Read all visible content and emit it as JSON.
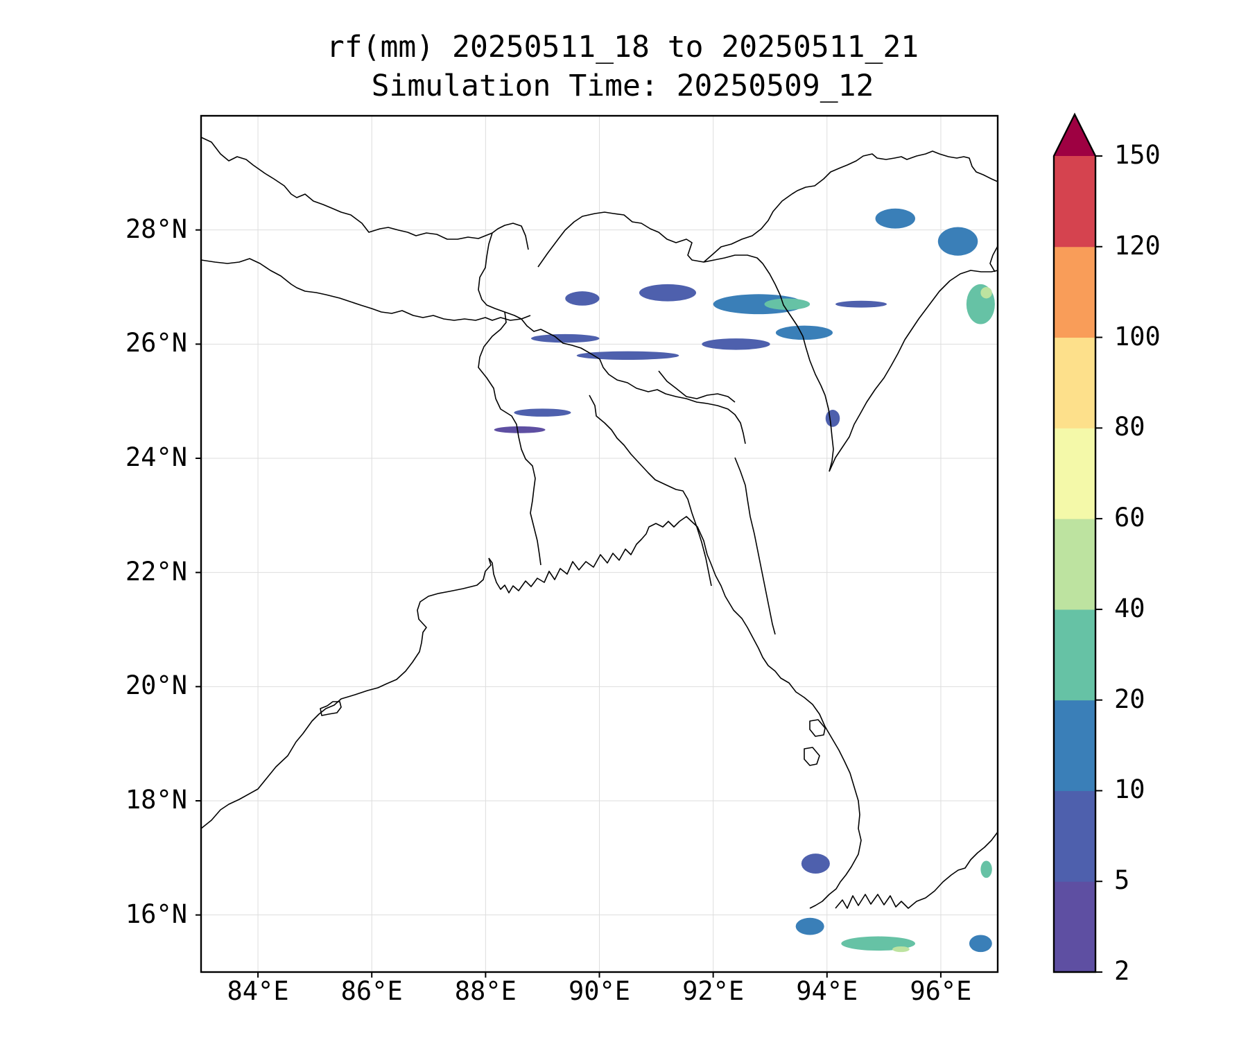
{
  "title": {
    "line1": "rf(mm) 20250511_18 to 20250511_21",
    "line2": "Simulation Time: 20250509_12"
  },
  "map": {
    "lon_range": [
      83.0,
      97.0
    ],
    "lat_range": [
      15.0,
      30.0
    ],
    "lon_ticks": [
      {
        "value": 84,
        "label": "84°E"
      },
      {
        "value": 86,
        "label": "86°E"
      },
      {
        "value": 88,
        "label": "88°E"
      },
      {
        "value": 90,
        "label": "90°E"
      },
      {
        "value": 92,
        "label": "92°E"
      },
      {
        "value": 94,
        "label": "94°E"
      },
      {
        "value": 96,
        "label": "96°E"
      }
    ],
    "lat_ticks": [
      {
        "value": 28,
        "label": "28°N"
      },
      {
        "value": 26,
        "label": "26°N"
      },
      {
        "value": 24,
        "label": "24°N"
      },
      {
        "value": 22,
        "label": "22°N"
      },
      {
        "value": 20,
        "label": "20°N"
      },
      {
        "value": 18,
        "label": "18°N"
      },
      {
        "value": 16,
        "label": "16°N"
      }
    ],
    "gridlines": true
  },
  "colorbar": {
    "levels": [
      "2",
      "5",
      "10",
      "20",
      "40",
      "60",
      "80",
      "100",
      "120",
      "150"
    ],
    "colors": [
      "#5e4fa2",
      "#4e60ad",
      "#3a7fb8",
      "#66c2a5",
      "#bde3a0",
      "#f4f9a9",
      "#fde08b",
      "#f99d59",
      "#d5434f",
      "#9e0142"
    ],
    "extend": "max"
  },
  "rain_cells": [
    {
      "lon": 89.7,
      "lat": 26.8,
      "w": 0.6,
      "h": 0.25,
      "level": 1
    },
    {
      "lon": 91.2,
      "lat": 26.9,
      "w": 1.0,
      "h": 0.3,
      "level": 1
    },
    {
      "lon": 92.8,
      "lat": 26.7,
      "w": 1.6,
      "h": 0.35,
      "level": 2
    },
    {
      "lon": 93.3,
      "lat": 26.7,
      "w": 0.8,
      "h": 0.2,
      "level": 3
    },
    {
      "lon": 94.6,
      "lat": 26.7,
      "w": 0.9,
      "h": 0.12,
      "level": 1
    },
    {
      "lon": 89.4,
      "lat": 26.1,
      "w": 1.2,
      "h": 0.15,
      "level": 1
    },
    {
      "lon": 90.5,
      "lat": 25.8,
      "w": 1.8,
      "h": 0.15,
      "level": 1
    },
    {
      "lon": 89.0,
      "lat": 24.8,
      "w": 1.0,
      "h": 0.14,
      "level": 1
    },
    {
      "lon": 88.6,
      "lat": 24.5,
      "w": 0.9,
      "h": 0.12,
      "level": 0
    },
    {
      "lon": 92.4,
      "lat": 26.0,
      "w": 1.2,
      "h": 0.2,
      "level": 1
    },
    {
      "lon": 93.6,
      "lat": 26.2,
      "w": 1.0,
      "h": 0.25,
      "level": 2
    },
    {
      "lon": 95.2,
      "lat": 28.2,
      "w": 0.7,
      "h": 0.35,
      "level": 2
    },
    {
      "lon": 96.3,
      "lat": 27.8,
      "w": 0.7,
      "h": 0.5,
      "level": 2
    },
    {
      "lon": 96.7,
      "lat": 26.7,
      "w": 0.5,
      "h": 0.7,
      "level": 3
    },
    {
      "lon": 96.8,
      "lat": 26.9,
      "w": 0.2,
      "h": 0.2,
      "level": 4
    },
    {
      "lon": 94.1,
      "lat": 24.7,
      "w": 0.25,
      "h": 0.3,
      "level": 1
    },
    {
      "lon": 93.8,
      "lat": 16.9,
      "w": 0.5,
      "h": 0.35,
      "level": 1
    },
    {
      "lon": 93.7,
      "lat": 15.8,
      "w": 0.5,
      "h": 0.3,
      "level": 2
    },
    {
      "lon": 94.9,
      "lat": 15.5,
      "w": 1.3,
      "h": 0.25,
      "level": 3
    },
    {
      "lon": 95.3,
      "lat": 15.4,
      "w": 0.3,
      "h": 0.1,
      "level": 4
    },
    {
      "lon": 96.7,
      "lat": 15.5,
      "w": 0.4,
      "h": 0.3,
      "level": 2
    },
    {
      "lon": 96.8,
      "lat": 16.8,
      "w": 0.2,
      "h": 0.3,
      "level": 3
    }
  ]
}
